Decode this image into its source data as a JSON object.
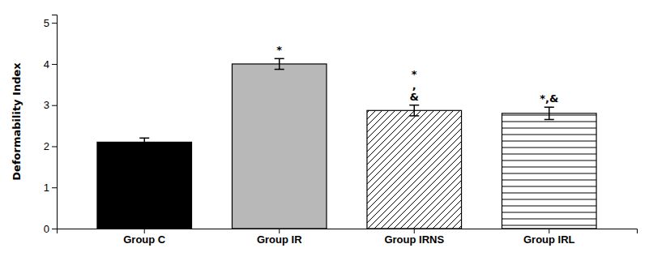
{
  "chart_data": {
    "type": "bar",
    "categories": [
      "Group C",
      "Group IR",
      "Group IRNS",
      "Group IRL"
    ],
    "values": [
      2.1,
      4.0,
      2.87,
      2.8
    ],
    "errors": [
      0.1,
      0.13,
      0.13,
      0.15
    ],
    "colors": [
      "#000000",
      "#b8b8b8",
      "#ffffff",
      "#ffffff"
    ],
    "ylabel": "Deformability Index",
    "ylim": [
      0,
      5.2
    ],
    "yticks": [
      0,
      1,
      2,
      3,
      4,
      5
    ],
    "annotations": [
      null,
      "*",
      "*\n,\n&",
      "*,&"
    ]
  }
}
